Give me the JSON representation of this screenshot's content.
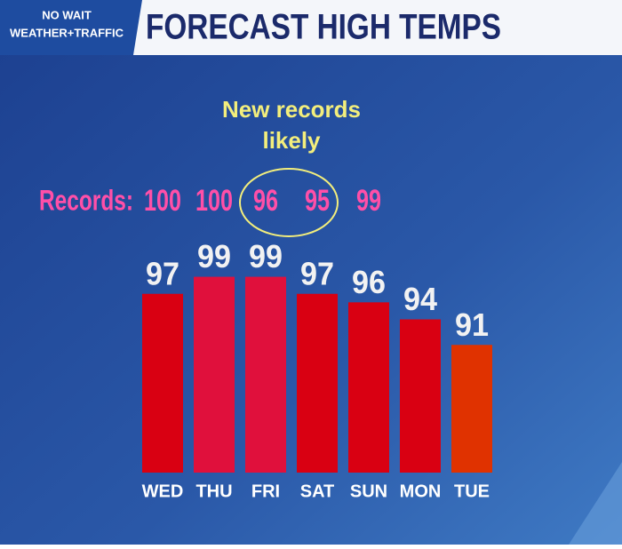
{
  "header": {
    "logo_lines": [
      "NO WAIT",
      "WEATHER+TRAFFIC"
    ]
  },
  "chart_data": {
    "type": "bar",
    "title": "FORECAST HIGH TEMPS",
    "categories": [
      "WED",
      "THU",
      "FRI",
      "SAT",
      "SUN",
      "MON",
      "TUE"
    ],
    "values": [
      97,
      99,
      99,
      97,
      96,
      94,
      91
    ],
    "colors": [
      "#d90012",
      "#e0103c",
      "#e0103c",
      "#d90012",
      "#d90012",
      "#d90012",
      "#e03200"
    ],
    "ylim": [
      76,
      100
    ],
    "records": {
      "label": "Records:",
      "values": [
        100,
        100,
        96,
        95,
        99,
        null,
        null
      ]
    },
    "annotation": [
      "New records",
      "likely"
    ]
  }
}
